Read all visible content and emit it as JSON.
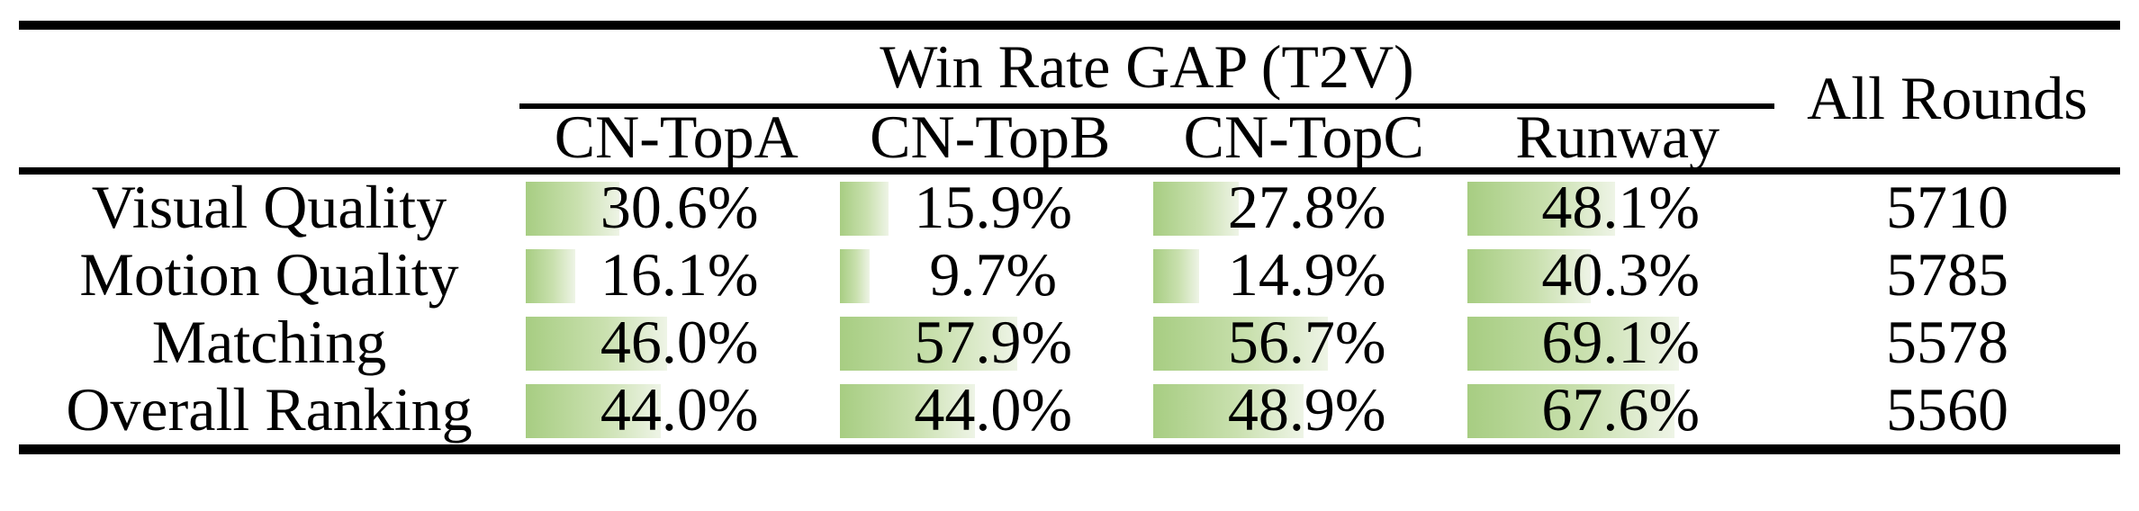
{
  "table": {
    "span_header": "Win Rate GAP (T2V)",
    "all_rounds_header": "All Rounds",
    "columns": [
      "CN-TopA",
      "CN-TopB",
      "CN-TopC",
      "Runway"
    ],
    "rows": [
      {
        "label": "Visual Quality",
        "cells": [
          {
            "value": 30.6,
            "text": "30.6%"
          },
          {
            "value": 15.9,
            "text": "15.9%"
          },
          {
            "value": 27.8,
            "text": "27.8%"
          },
          {
            "value": 48.1,
            "text": "48.1%"
          }
        ],
        "all_rounds": "5710"
      },
      {
        "label": "Motion Quality",
        "cells": [
          {
            "value": 16.1,
            "text": "16.1%"
          },
          {
            "value": 9.7,
            "text": "9.7%"
          },
          {
            "value": 14.9,
            "text": "14.9%"
          },
          {
            "value": 40.3,
            "text": "40.3%"
          }
        ],
        "all_rounds": "5785"
      },
      {
        "label": "Matching",
        "cells": [
          {
            "value": 46.0,
            "text": "46.0%"
          },
          {
            "value": 57.9,
            "text": "57.9%"
          },
          {
            "value": 56.7,
            "text": "56.7%"
          },
          {
            "value": 69.1,
            "text": "69.1%"
          }
        ],
        "all_rounds": "5578"
      },
      {
        "label": "Overall Ranking",
        "cells": [
          {
            "value": 44.0,
            "text": "44.0%"
          },
          {
            "value": 44.0,
            "text": "44.0%"
          },
          {
            "value": 48.9,
            "text": "48.9%"
          },
          {
            "value": 67.6,
            "text": "67.6%"
          }
        ],
        "all_rounds": "5560"
      }
    ],
    "colors": {
      "bar_gradient_start": "#a7cd82",
      "bar_gradient_end": "#eef4e6",
      "rule": "#000000",
      "text": "#000000"
    }
  }
}
